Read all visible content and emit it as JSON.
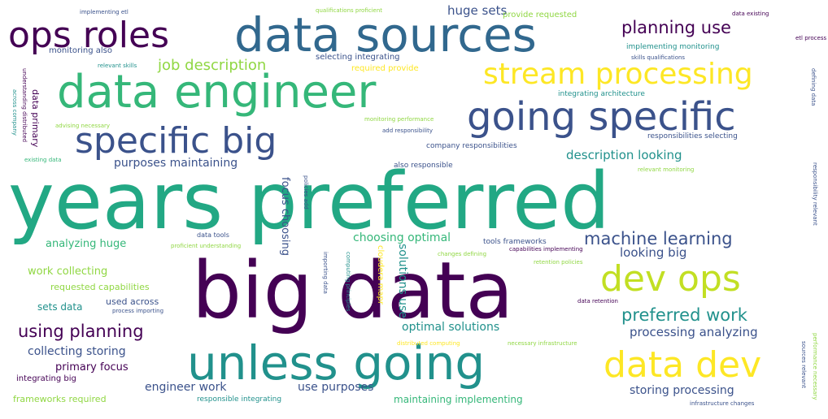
{
  "palette": {
    "purple": "#440154",
    "indigo": "#3b528b",
    "blue": "#31688e",
    "teal": "#21918c",
    "green": "#35b779",
    "lime": "#90d743",
    "yellow": "#fde725"
  },
  "words": [
    "years preferred",
    "big data",
    "data sources",
    "data engineer",
    "unless going",
    "going specific",
    "specific big",
    "ops roles",
    "stream processing",
    "dev ops",
    "data dev",
    "machine learning",
    "planning use",
    "job description",
    "preferred work",
    "using planning",
    "description looking",
    "huge sets",
    "looking big",
    "optimal solutions",
    "processing analyzing",
    "purposes maintaining",
    "choosing optimal",
    "analyzing huge",
    "work collecting",
    "collecting storing",
    "primary focus",
    "engineer work",
    "use purposes",
    "storing processing",
    "maintaining implementing",
    "sets data",
    "used across",
    "requested capabilities",
    "integrating big",
    "frameworks required",
    "responsible integrating",
    "provide requested",
    "qualifications proficient",
    "implementing etl",
    "data existing",
    "monitoring also",
    "relevant skills",
    "selecting integrating",
    "required provide",
    "implementing monitoring",
    "skills qualifications",
    "integrating architecture",
    "monitoring performance",
    "add responsibility",
    "company responsibilities",
    "responsibilities selecting",
    "also responsible",
    "relevant monitoring",
    "existing data",
    "advising necessary",
    "data tools",
    "proficient understanding",
    "tools frameworks",
    "capabilities implementing",
    "retention policies",
    "changes defining",
    "etl process",
    "data retention",
    "process importing",
    "infrastructure changes",
    "distributed computing",
    "necessary infrastructure",
    "focus choosing",
    "solutions use",
    "data primary",
    "understanding distributed",
    "computing principles",
    "cloudera mapr",
    "importing data",
    "defining data",
    "performance necessary",
    "responsibility relevant",
    "policies add",
    "across company",
    "sources relevant"
  ]
}
